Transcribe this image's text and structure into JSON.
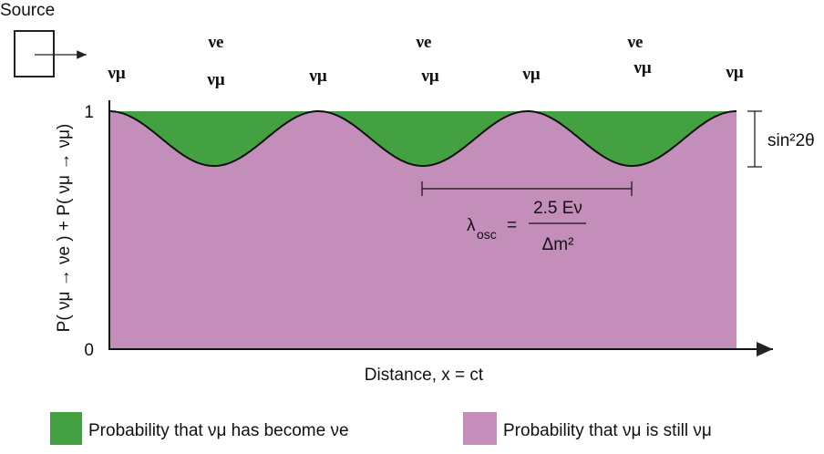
{
  "header": {
    "source": "Source"
  },
  "flavor_labels": {
    "top": [
      "νe",
      "νe",
      "νe"
    ],
    "bottom": [
      "νμ",
      "νμ",
      "νμ",
      "νμ",
      "νμ",
      "νμ",
      "νμ"
    ]
  },
  "axes": {
    "y_tick_top": "1",
    "y_tick_bottom": "0",
    "y_label": "P( νμ → νe ) + P( νμ → νμ)",
    "x_label": "Distance, x = ct"
  },
  "annotations": {
    "amplitude": "sin²2θ",
    "wavelength": {
      "symbol": "λ",
      "subscript": "osc",
      "equals": "=",
      "numerator": "2.5 Eν",
      "denominator": "Δm²"
    }
  },
  "legend": [
    {
      "label": "Probability that νμ has become νe",
      "color": "#44a141"
    },
    {
      "label": "Probability that νμ is still νμ",
      "color": "#c38fba"
    }
  ]
}
